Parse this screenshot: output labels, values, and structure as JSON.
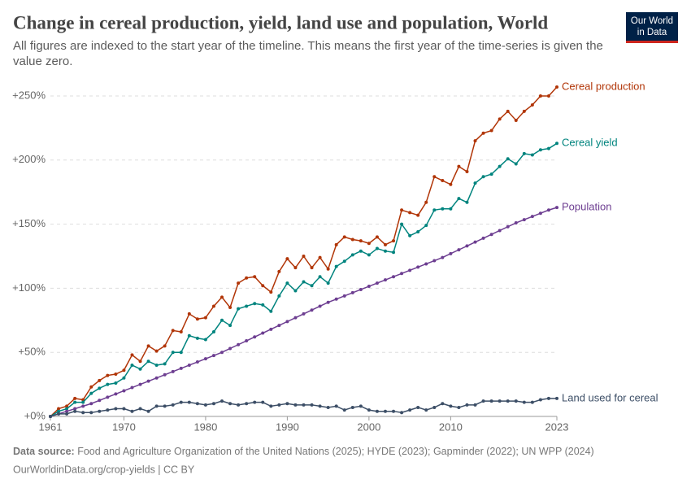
{
  "chart_data": {
    "type": "line",
    "title": "Change in cereal production, yield, land use and population, World",
    "subtitle": "All figures are indexed to the start year of the timeline. This means the first year of the time-series is given the value zero.",
    "logo": [
      "Our World",
      "in Data"
    ],
    "source_label": "Data source:",
    "source": "Food and Agriculture Organization of the United Nations (2025); HYDE (2023); Gapminder (2022); UN WPP (2024)",
    "footer": "OurWorldinData.org/crop-yields | CC BY",
    "x": [
      1961,
      1962,
      1963,
      1964,
      1965,
      1966,
      1967,
      1968,
      1969,
      1970,
      1971,
      1972,
      1973,
      1974,
      1975,
      1976,
      1977,
      1978,
      1979,
      1980,
      1981,
      1982,
      1983,
      1984,
      1985,
      1986,
      1987,
      1988,
      1989,
      1990,
      1991,
      1992,
      1993,
      1994,
      1995,
      1996,
      1997,
      1998,
      1999,
      2000,
      2001,
      2002,
      2003,
      2004,
      2005,
      2006,
      2007,
      2008,
      2009,
      2010,
      2011,
      2012,
      2013,
      2014,
      2015,
      2016,
      2017,
      2018,
      2019,
      2020,
      2021,
      2022,
      2023
    ],
    "xlim": [
      1961,
      2023
    ],
    "xticks": [
      1961,
      1970,
      1980,
      1990,
      2000,
      2010,
      2023
    ],
    "ylim": [
      0,
      250
    ],
    "yticks": [
      {
        "value": 0,
        "label": "+0%"
      },
      {
        "value": 50,
        "label": "+50%"
      },
      {
        "value": 100,
        "label": "+100%"
      },
      {
        "value": 150,
        "label": "+150%"
      },
      {
        "value": 200,
        "label": "+200%"
      },
      {
        "value": 250,
        "label": "+250%"
      }
    ],
    "grid": true,
    "series": [
      {
        "name": "Cereal production",
        "color": "#b13507",
        "values": [
          0,
          6,
          8,
          14,
          13,
          23,
          28,
          32,
          33,
          36,
          48,
          43,
          55,
          51,
          55,
          67,
          66,
          80,
          76,
          77,
          86,
          93,
          85,
          104,
          108,
          109,
          102,
          97,
          113,
          123,
          116,
          125,
          116,
          124,
          115,
          134,
          140,
          138,
          137,
          135,
          140,
          134,
          137,
          161,
          159,
          157,
          167,
          187,
          184,
          181,
          195,
          191,
          215,
          221,
          223,
          232,
          238,
          231,
          238,
          243,
          250,
          250,
          257
        ]
      },
      {
        "name": "Cereal yield",
        "color": "#00847e",
        "values": [
          0,
          4,
          6,
          11,
          11,
          18,
          22,
          25,
          26,
          30,
          40,
          37,
          43,
          40,
          41,
          50,
          50,
          63,
          61,
          60,
          66,
          75,
          71,
          84,
          86,
          88,
          87,
          82,
          94,
          104,
          98,
          105,
          102,
          109,
          104,
          117,
          121,
          126,
          129,
          126,
          131,
          129,
          128,
          150,
          141,
          144,
          149,
          161,
          162,
          162,
          170,
          167,
          182,
          187,
          189,
          195,
          201,
          197,
          205,
          204,
          208,
          209,
          213
        ]
      },
      {
        "name": "Population",
        "color": "#6d3e91",
        "values": [
          0,
          2,
          4,
          6,
          8,
          10,
          12.5,
          15,
          17.5,
          20,
          22.5,
          25,
          27.5,
          30,
          32.5,
          35,
          37.5,
          40,
          42.5,
          45,
          47.5,
          50,
          53,
          56,
          59,
          62,
          65,
          68,
          71,
          74,
          77,
          80,
          83,
          86,
          89,
          91.5,
          94,
          96.5,
          99,
          101.5,
          104,
          106.5,
          109,
          111.5,
          114,
          116.5,
          119,
          121.5,
          124,
          127,
          130,
          133,
          136,
          139,
          142,
          145,
          148,
          151,
          153.5,
          156,
          158.5,
          161,
          163
        ]
      },
      {
        "name": "Land used for cereal",
        "color": "#3c4e66",
        "values": [
          0,
          2,
          2,
          4,
          3,
          3,
          4,
          5,
          6,
          6,
          4,
          6,
          4,
          8,
          8,
          9,
          11,
          11,
          10,
          9,
          10,
          12,
          10,
          9,
          10,
          11,
          11,
          8,
          9,
          10,
          9,
          9,
          9,
          8,
          7,
          8,
          5,
          7,
          8,
          5,
          4,
          4,
          4,
          3,
          5,
          7,
          5,
          7,
          10,
          8,
          7,
          9,
          9,
          12,
          12,
          12,
          12,
          12,
          11,
          11,
          13,
          14,
          14
        ]
      }
    ]
  }
}
